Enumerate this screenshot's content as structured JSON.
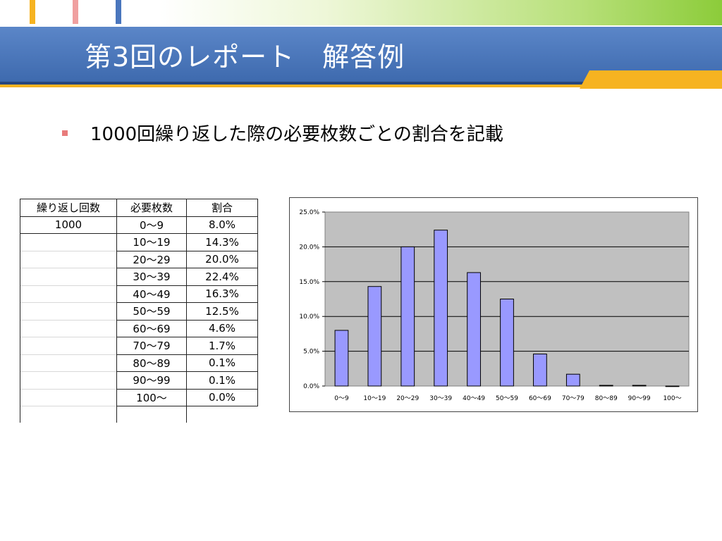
{
  "slide": {
    "title": "第3回のレポート　解答例",
    "bullet": "1000回繰り返した際の必要枚数ごとの割合を記載",
    "colors": {
      "title_bar": "#4a76bd",
      "accent": "#f6b321",
      "bullet": "#e87b7b",
      "bar_fill": "#9999ff",
      "plot_bg": "#c0c0c0"
    }
  },
  "table": {
    "headers": [
      "繰り返し回数",
      "必要枚数",
      "割合"
    ],
    "repeat_count": "1000",
    "rows": [
      [
        "0〜9",
        "8.0%"
      ],
      [
        "10〜19",
        "14.3%"
      ],
      [
        "20〜29",
        "20.0%"
      ],
      [
        "30〜39",
        "22.4%"
      ],
      [
        "40〜49",
        "16.3%"
      ],
      [
        "50〜59",
        "12.5%"
      ],
      [
        "60〜69",
        "4.6%"
      ],
      [
        "70〜79",
        "1.7%"
      ],
      [
        "80〜89",
        "0.1%"
      ],
      [
        "90〜99",
        "0.1%"
      ],
      [
        "100〜",
        "0.0%"
      ]
    ]
  },
  "chart_data": {
    "type": "bar",
    "categories": [
      "0〜9",
      "10〜19",
      "20〜29",
      "30〜39",
      "40〜49",
      "50〜59",
      "60〜69",
      "70〜79",
      "80〜89",
      "90〜99",
      "100〜"
    ],
    "values": [
      8.0,
      14.3,
      20.0,
      22.4,
      16.3,
      12.5,
      4.6,
      1.7,
      0.1,
      0.1,
      0.0
    ],
    "y_tick_labels": [
      "0.0%",
      "5.0%",
      "10.0%",
      "15.0%",
      "20.0%",
      "25.0%"
    ],
    "ylim": [
      0,
      25
    ],
    "grid": true,
    "legend": "none",
    "title": "",
    "xlabel": "",
    "ylabel": ""
  }
}
